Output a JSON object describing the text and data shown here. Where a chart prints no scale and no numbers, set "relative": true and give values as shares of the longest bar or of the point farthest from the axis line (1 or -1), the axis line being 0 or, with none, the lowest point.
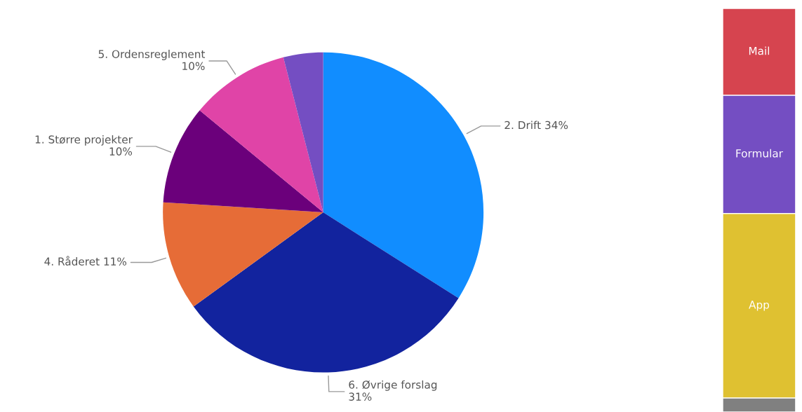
{
  "chart_data": [
    {
      "type": "pie",
      "categories": [
        "2. Drift",
        "6. Øvrige forslag",
        "4. Råderet",
        "1. Større projekter",
        "5. Ordensreglement",
        null
      ],
      "values": [
        34,
        31,
        11,
        10,
        10,
        4
      ],
      "value_labels": [
        "34%",
        "31%",
        "11%",
        "10%",
        "10%",
        null
      ],
      "colors": [
        "#118dff",
        "#12239e",
        "#e66c37",
        "#6b007b",
        "#e044a7",
        "#744ec2"
      ]
    },
    {
      "type": "bar",
      "stacked": true,
      "relative": true,
      "categories": [
        null
      ],
      "series": [
        {
          "color": "#808080",
          "values": [
            0.035
          ]
        },
        {
          "name": "App",
          "color": "#dfc131",
          "values": [
            0.457
          ]
        },
        {
          "name": "Formular",
          "color": "#744ec2",
          "values": [
            0.293
          ]
        },
        {
          "name": "Mail",
          "color": "#d6444f",
          "values": [
            0.215
          ]
        }
      ]
    }
  ]
}
